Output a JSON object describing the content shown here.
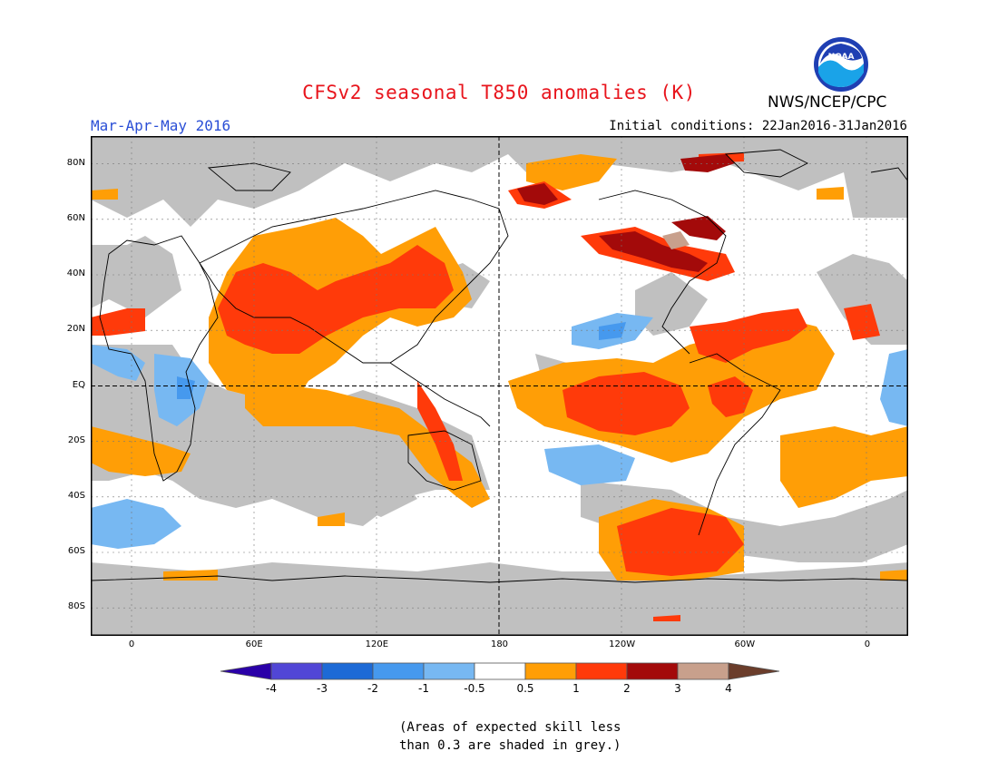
{
  "title": "CFSv2 seasonal T850 anomalies (K)",
  "season_label": "Mar-Apr-May 2016",
  "initial_conditions": "Initial conditions: 22Jan2016-31Jan2016",
  "agency": "NWS/NCEP/CPC",
  "logo_text": "NOAA",
  "map": {
    "lat_labels": [
      "80N",
      "60N",
      "40N",
      "20N",
      "EQ",
      "20S",
      "40S",
      "60S",
      "80S"
    ],
    "lat_values": [
      80,
      60,
      40,
      20,
      0,
      -20,
      -40,
      -60,
      -80
    ],
    "lon_labels": [
      "0",
      "60E",
      "120E",
      "180",
      "120W",
      "60W",
      "0"
    ],
    "lon_values": [
      0,
      60,
      120,
      180,
      240,
      300,
      360
    ],
    "lon_range": [
      -20,
      380
    ],
    "lat_range": [
      -90,
      90
    ]
  },
  "colorbar": {
    "labels": [
      "-4",
      "-3",
      "-2",
      "-1",
      "-0.5",
      "0.5",
      "1",
      "2",
      "3",
      "4"
    ],
    "colors": [
      "#2a00a8",
      "#5146d6",
      "#1d6ad6",
      "#4699ee",
      "#77b8f2",
      "#ffffff",
      "#ff9e06",
      "#ff3a0a",
      "#a30a0a",
      "#c8a08c",
      "#6b3d2b"
    ]
  },
  "note_line1": "(Areas of expected skill less",
  "note_line2": "than 0.3 are shaded in grey.)"
}
